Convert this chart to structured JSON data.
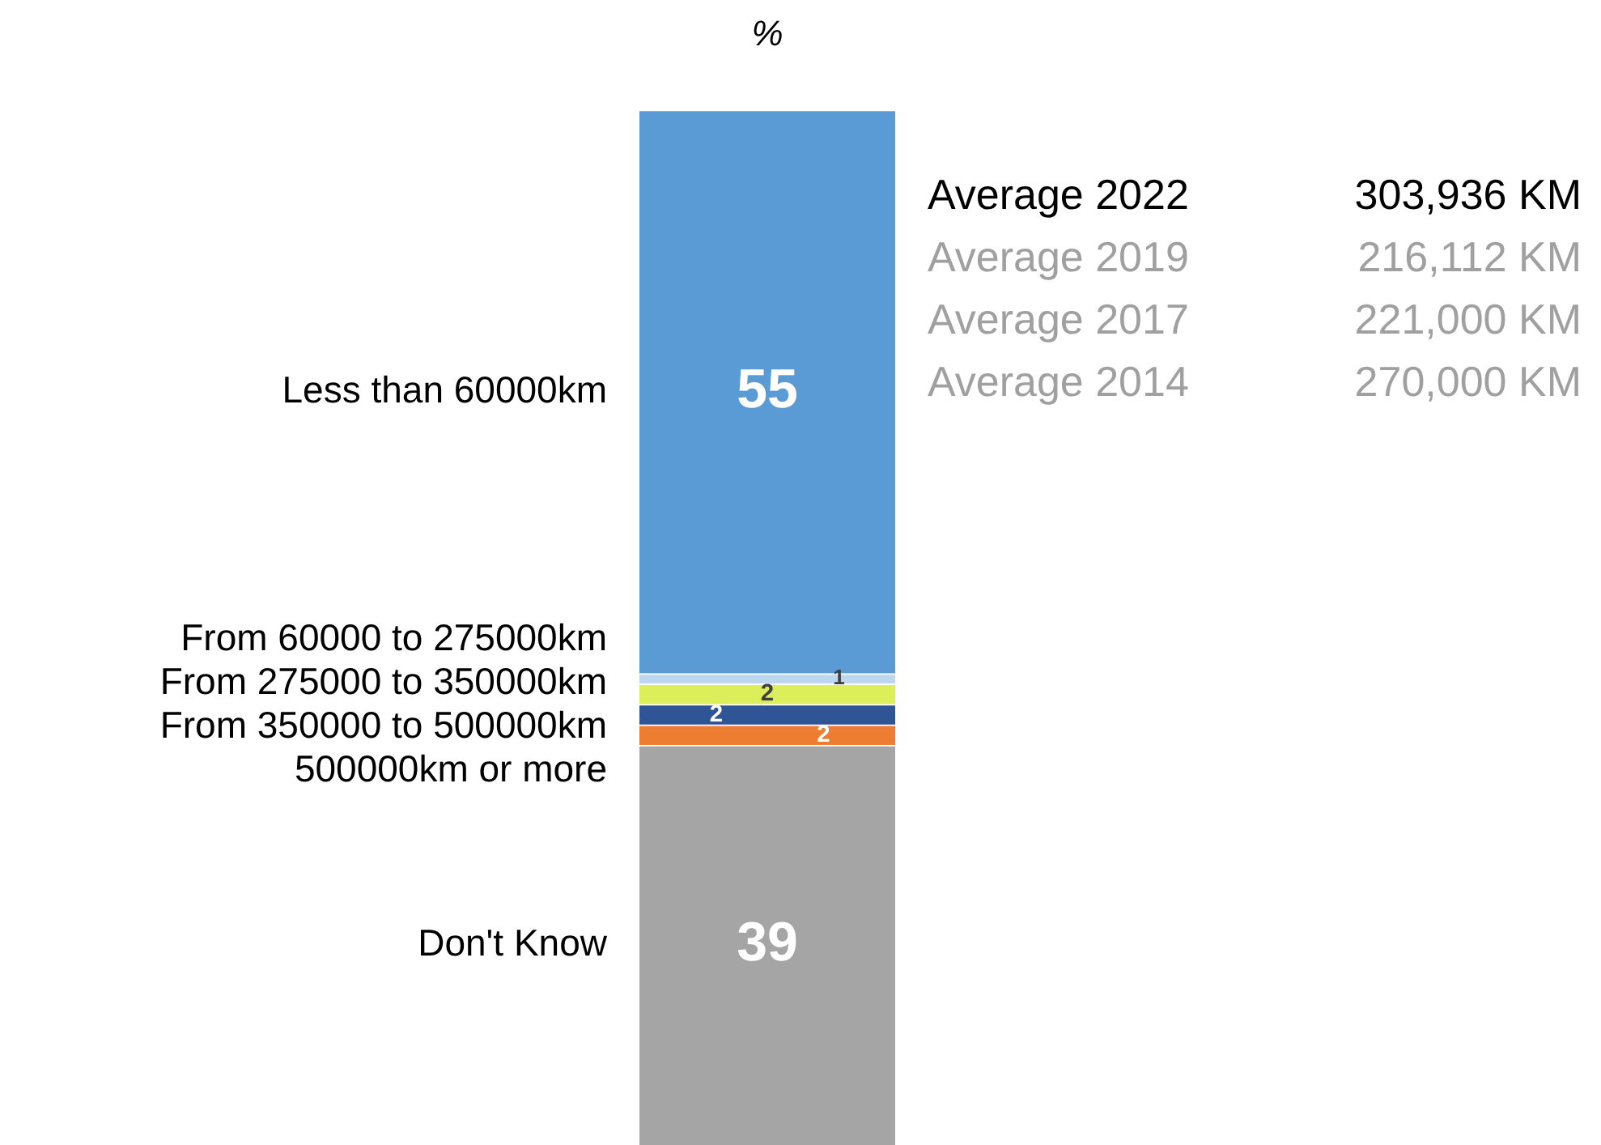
{
  "chart_data": {
    "type": "bar",
    "stacked": true,
    "title": "%",
    "categories": [
      null
    ],
    "series": [
      {
        "name": "Don't Know",
        "color": "#a5a5a5",
        "values": [
          39
        ]
      },
      {
        "name": "500000km or more",
        "color": "#ed7d31",
        "values": [
          2
        ]
      },
      {
        "name": "From 350000 to 500000km",
        "color": "#2f5597",
        "values": [
          2
        ]
      },
      {
        "name": "From 275000 to 350000km",
        "color": "#dcef5a",
        "values": [
          2
        ]
      },
      {
        "name": "From 60000 to 275000km",
        "color": "#bdd7ee",
        "values": [
          1
        ]
      },
      {
        "name": "Less than 60000km",
        "color": "#5b9bd5",
        "values": [
          55
        ]
      }
    ],
    "data_labels": true,
    "legend": false,
    "annotations": [
      "Average 2022",
      "303,936 KM",
      "Average 2019",
      "216,112 KM",
      "Average 2017",
      "221,000 KM",
      "Average 2014",
      "270,000 KM"
    ]
  }
}
